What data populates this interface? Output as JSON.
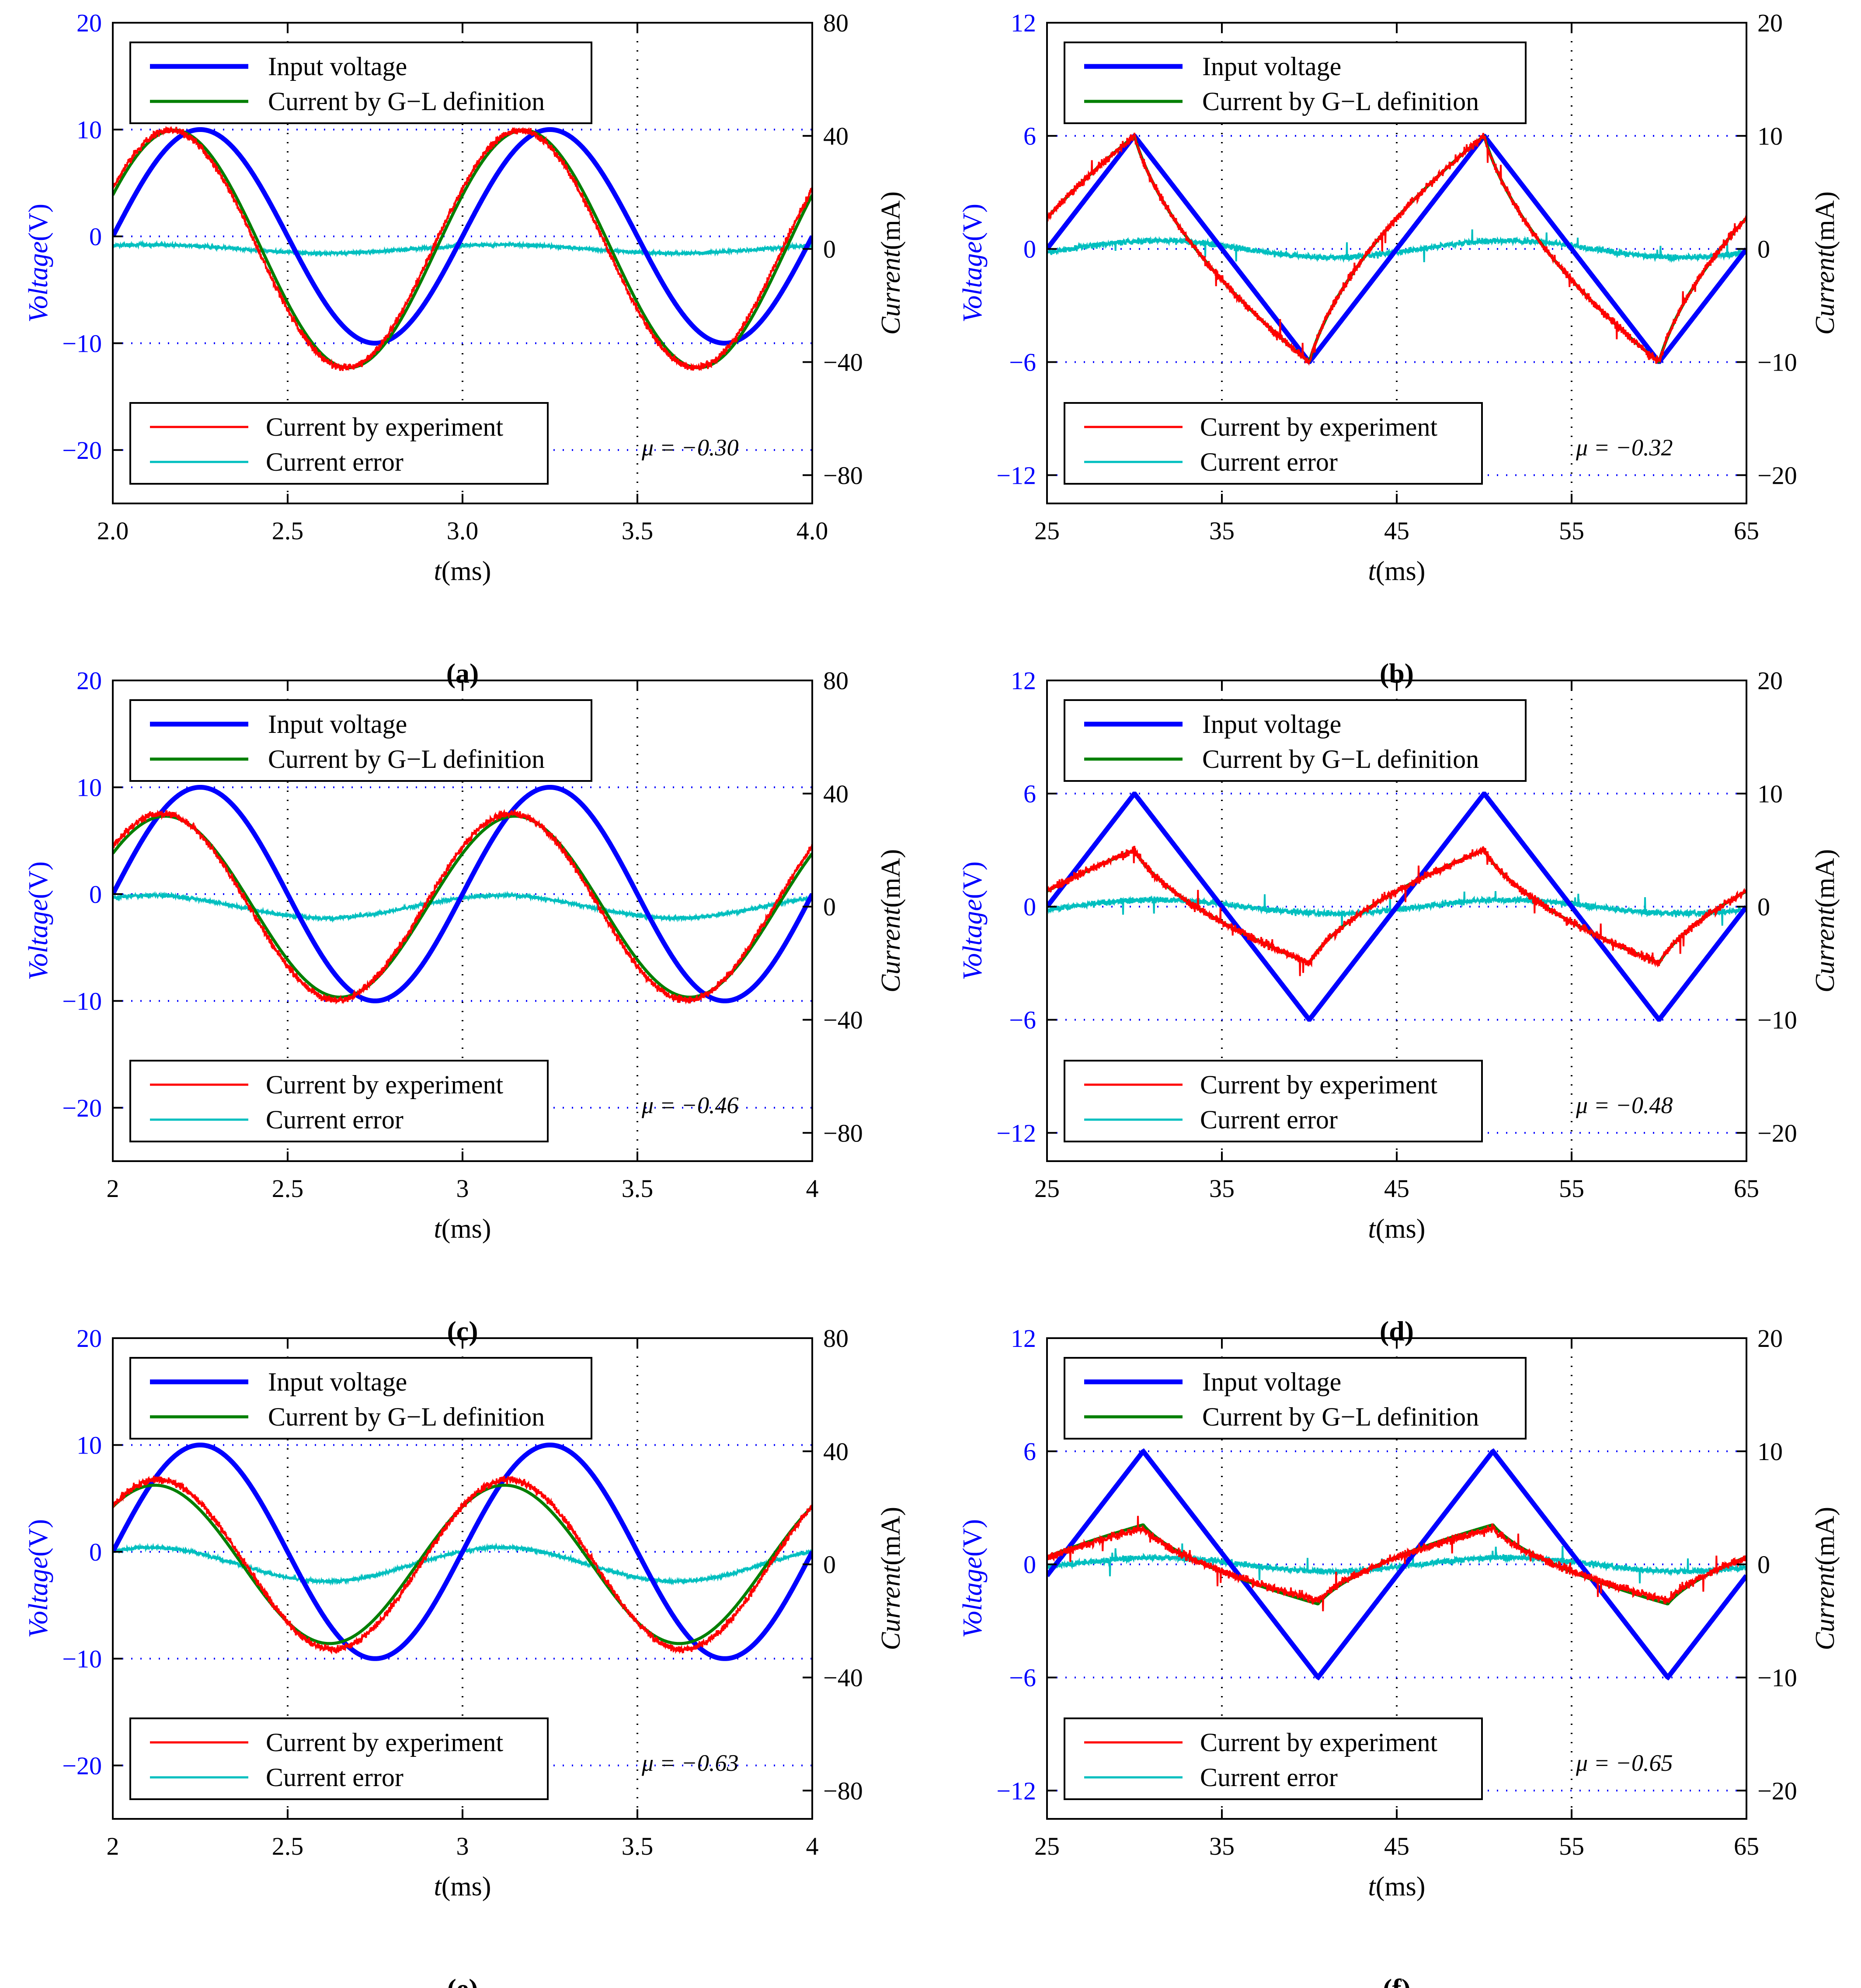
{
  "colors": {
    "voltage": "#0000ff",
    "gl": "#007f00",
    "experiment": "#ff0000",
    "error": "#00bfbf",
    "voltage_axis": "#0000ff",
    "grid_h": "#0000ff",
    "grid_v": "#000000"
  },
  "legend": {
    "input_voltage": "Input voltage",
    "current_gl": "Current by G−L definition",
    "current_exp": "Current by experiment",
    "current_err": "Current error"
  },
  "axis_labels": {
    "voltage": "Voltage",
    "voltage_unit": "(V)",
    "current": "Current",
    "current_unit": "(mA)",
    "time": "t",
    "time_unit": "(ms)"
  },
  "chart_data": [
    {
      "panel": "(a)",
      "type": "line",
      "wave": "sine",
      "mu_label": "μ = −0.30",
      "xlim": [
        2.0,
        4.0
      ],
      "xticks": [
        "2.0",
        "2.5",
        "3.0",
        "3.5",
        "4.0"
      ],
      "ylim_left": [
        -25,
        20
      ],
      "yticks_left": [
        "20",
        "10",
        "0",
        "−10",
        "−20"
      ],
      "ylim_right": [
        -90,
        80
      ],
      "yticks_right": [
        "80",
        "40",
        "0",
        "−40",
        "−80"
      ],
      "voltage": {
        "amplitude_V": 10,
        "period_ms": 1.0,
        "phase_zero_ms": 2.0
      },
      "current_gl": {
        "amplitude_mA": 42,
        "lead_ms": 0.075
      },
      "current_exp": {
        "amplitude_mA": 42,
        "lead_ms": 0.085
      },
      "current_err": {
        "amplitude_mA": 1.5
      }
    },
    {
      "panel": "(b)",
      "type": "line",
      "wave": "triangle",
      "mu_label": "μ = −0.32",
      "xlim": [
        25,
        65
      ],
      "xticks": [
        "25",
        "35",
        "45",
        "55",
        "65"
      ],
      "ylim_left": [
        -13.5,
        12
      ],
      "yticks_left": [
        "12",
        "6",
        "0",
        "−6",
        "−12"
      ],
      "ylim_right": [
        -22.5,
        20
      ],
      "yticks_right": [
        "20",
        "10",
        "0",
        "−10",
        "−20"
      ],
      "voltage": {
        "amplitude_V": 6,
        "period_ms": 20,
        "peaks_ms": [
          30,
          50
        ],
        "troughs_ms": [
          40,
          60
        ]
      },
      "current_gl": {
        "peak_mA": 10,
        "value_at_25ms_mA": 4
      },
      "current_exp": {
        "peak_mA": 10
      },
      "current_err": {
        "amplitude_mA": 1.5
      }
    },
    {
      "panel": "(c)",
      "type": "line",
      "wave": "sine",
      "mu_label": "μ = −0.46",
      "xlim": [
        2,
        4
      ],
      "xticks": [
        "2",
        "2.5",
        "3",
        "3.5",
        "4"
      ],
      "ylim_left": [
        -25,
        20
      ],
      "yticks_left": [
        "20",
        "10",
        "0",
        "−10",
        "−20"
      ],
      "ylim_right": [
        -90,
        80
      ],
      "yticks_right": [
        "80",
        "40",
        "0",
        "−40",
        "−80"
      ],
      "voltage": {
        "amplitude_V": 10,
        "period_ms": 1.0,
        "phase_zero_ms": 2.0
      },
      "current_gl": {
        "amplitude_mA": 32,
        "lead_ms": 0.1
      },
      "current_exp": {
        "amplitude_mA": 33,
        "lead_ms": 0.11
      },
      "current_err": {
        "amplitude_mA": 4
      }
    },
    {
      "panel": "(d)",
      "type": "line",
      "wave": "triangle",
      "mu_label": "μ = −0.48",
      "xlim": [
        25,
        65
      ],
      "xticks": [
        "25",
        "35",
        "45",
        "55",
        "65"
      ],
      "ylim_left": [
        -13.5,
        12
      ],
      "yticks_left": [
        "12",
        "6",
        "0",
        "−6",
        "−12"
      ],
      "ylim_right": [
        -22.5,
        20
      ],
      "yticks_right": [
        "20",
        "10",
        "0",
        "−10",
        "−20"
      ],
      "voltage": {
        "amplitude_V": 6,
        "period_ms": 20,
        "peaks_ms": [
          30,
          50
        ],
        "troughs_ms": [
          40,
          60
        ]
      },
      "current_gl": {
        "peak_mA": 5,
        "value_at_25ms_mA": 2.5
      },
      "current_exp": {
        "peak_mA": 5
      },
      "current_err": {
        "amplitude_mA": 1.2
      }
    },
    {
      "panel": "(e)",
      "type": "line",
      "wave": "sine",
      "mu_label": "μ = −0.63",
      "xlim": [
        2,
        4
      ],
      "xticks": [
        "2",
        "2.5",
        "3",
        "3.5",
        "4"
      ],
      "ylim_left": [
        -25,
        20
      ],
      "yticks_left": [
        "20",
        "10",
        "0",
        "−10",
        "−20"
      ],
      "ylim_right": [
        -90,
        80
      ],
      "yticks_right": [
        "80",
        "40",
        "0",
        "−40",
        "−80"
      ],
      "voltage": {
        "amplitude_V": 10,
        "period_ms": 1.0,
        "phase_zero_ms": 2.0
      },
      "current_gl": {
        "amplitude_mA": 28,
        "lead_ms": 0.13
      },
      "current_exp": {
        "amplitude_mA": 30,
        "lead_ms": 0.12
      },
      "current_err": {
        "amplitude_mA": 6
      }
    },
    {
      "panel": "(f)",
      "type": "line",
      "wave": "triangle",
      "mu_label": "μ = −0.65",
      "xlim": [
        25,
        65
      ],
      "xticks": [
        "25",
        "35",
        "45",
        "55",
        "65"
      ],
      "ylim_left": [
        -13.5,
        12
      ],
      "yticks_left": [
        "12",
        "6",
        "0",
        "−6",
        "−12"
      ],
      "ylim_right": [
        -22.5,
        20
      ],
      "yticks_right": [
        "20",
        "10",
        "0",
        "−10",
        "−20"
      ],
      "voltage": {
        "amplitude_V": 6,
        "period_ms": 20,
        "peaks_ms": [
          30.5,
          50.5
        ],
        "troughs_ms": [
          40.5,
          60.5
        ]
      },
      "current_gl": {
        "peak_mA": 3.5,
        "value_at_25ms_mA": 2
      },
      "current_exp": {
        "peak_mA": 3.2
      },
      "current_err": {
        "amplitude_mA": 1.2
      }
    }
  ]
}
